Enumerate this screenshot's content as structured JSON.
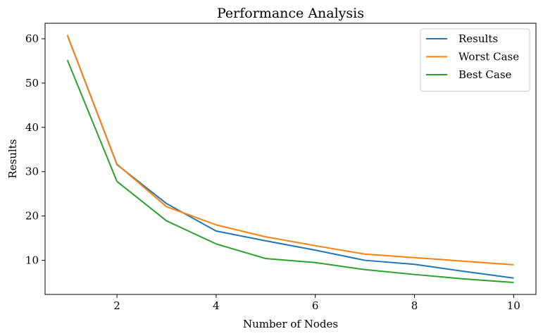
{
  "chart_data": {
    "type": "line",
    "title": "Performance Analysis",
    "xlabel": "Number of Nodes",
    "ylabel": "Results",
    "x": [
      1,
      2,
      3,
      4,
      5,
      6,
      7,
      8,
      9,
      10
    ],
    "xlim": [
      0.55,
      10.45
    ],
    "ylim": [
      2.3,
      63.5
    ],
    "xticks": [
      2,
      4,
      6,
      8,
      10
    ],
    "yticks": [
      10,
      20,
      30,
      40,
      50,
      60
    ],
    "grid": false,
    "legend_position": "top-right",
    "series": [
      {
        "name": "Results",
        "color": "#1f77b4",
        "values": [
          60.8,
          31.6,
          22.8,
          16.6,
          14.4,
          12.3,
          10.0,
          9.1,
          7.5,
          6.0
        ]
      },
      {
        "name": "Worst Case",
        "color": "#ff7f0e",
        "values": [
          60.8,
          31.7,
          22.1,
          18.0,
          15.3,
          13.3,
          11.4,
          10.6,
          9.8,
          9.0
        ]
      },
      {
        "name": "Best Case",
        "color": "#2ca02c",
        "values": [
          55.2,
          27.8,
          18.9,
          13.7,
          10.4,
          9.5,
          7.9,
          6.8,
          5.8,
          5.0
        ]
      }
    ]
  }
}
